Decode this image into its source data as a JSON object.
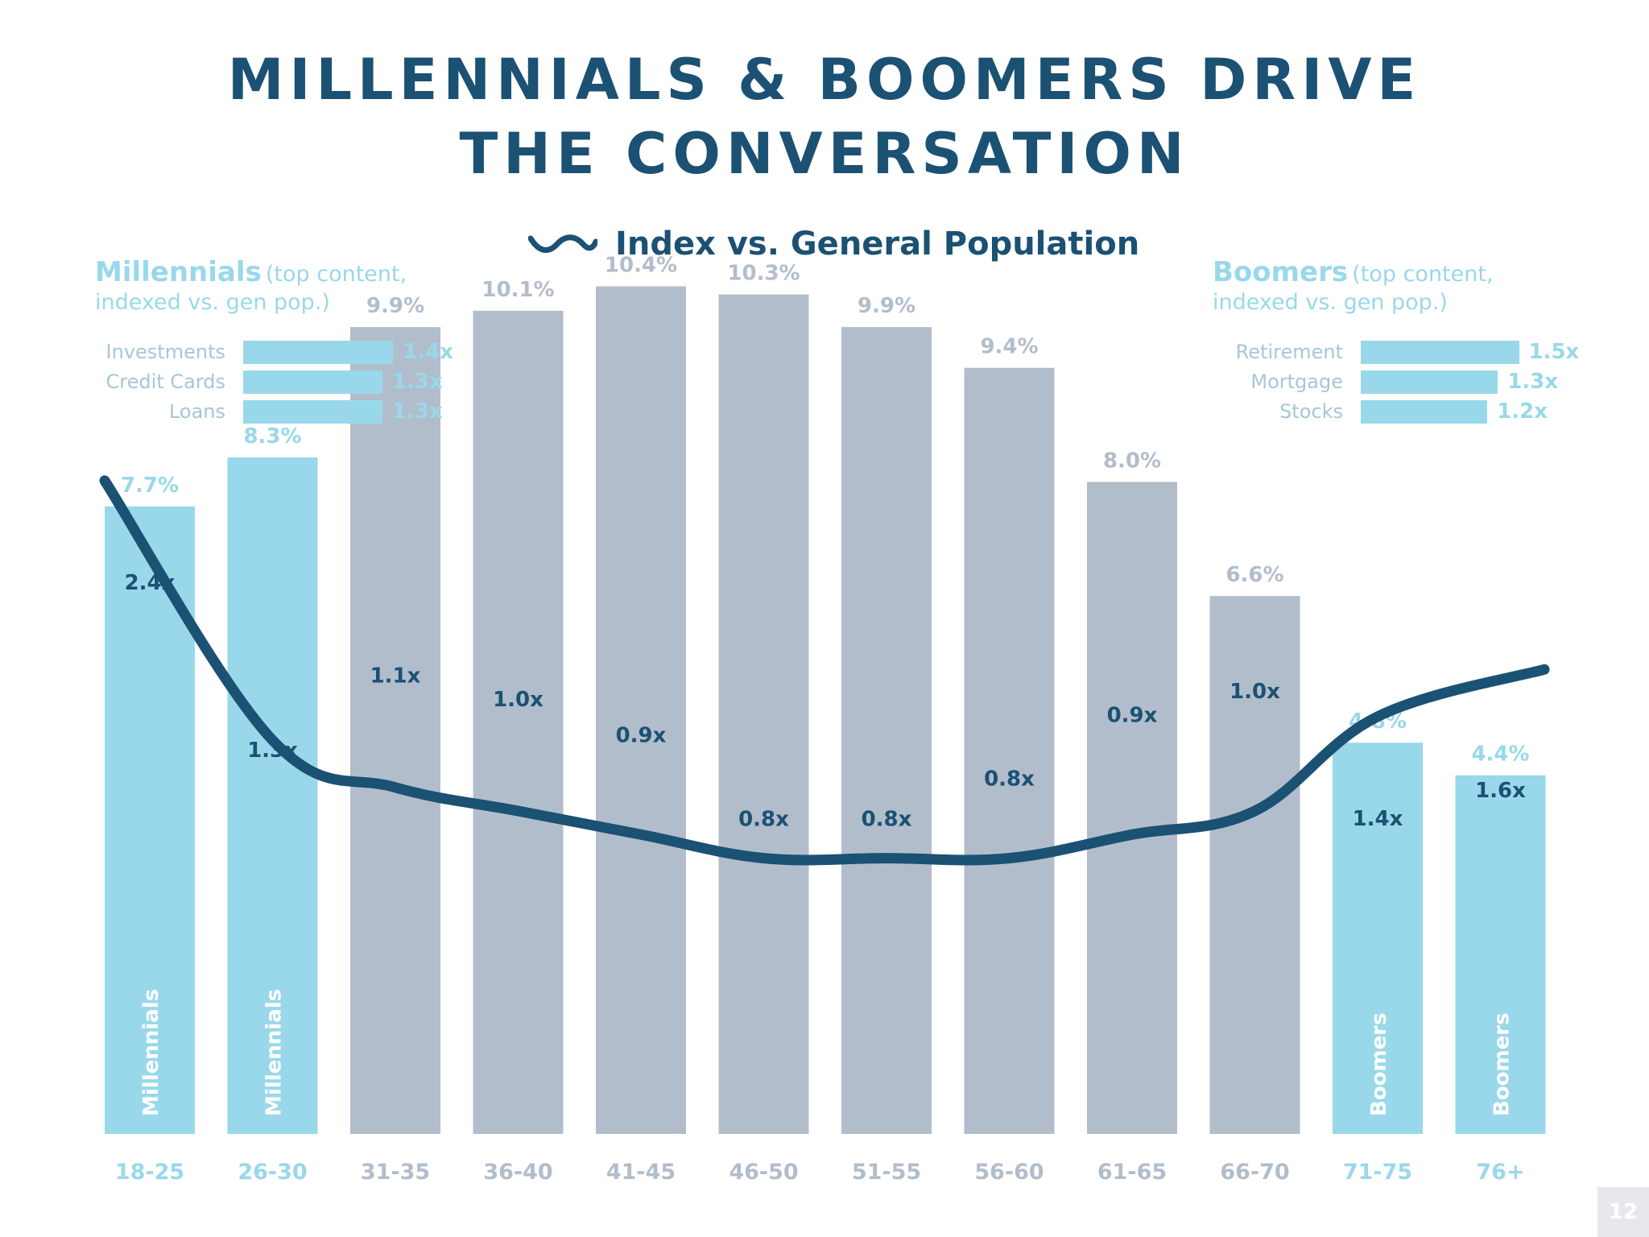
{
  "title": {
    "line1": "MILLENNIALS & BOOMERS DRIVE",
    "line2": "THE CONVERSATION"
  },
  "legend": {
    "label": "Index vs. General Population",
    "icon": "wave-line-icon"
  },
  "millennials_panel": {
    "title": "Millennials",
    "subtitle_line1": "(top content,",
    "subtitle_line2": "indexed vs. gen pop.)",
    "items": [
      {
        "label": "Investments",
        "value": 1.4,
        "value_label": "1.4x"
      },
      {
        "label": "Credit Cards",
        "value": 1.3,
        "value_label": "1.3x"
      },
      {
        "label": "Loans",
        "value": 1.3,
        "value_label": "1.3x"
      }
    ]
  },
  "boomers_panel": {
    "title": "Boomers",
    "subtitle_line1": "(top content,",
    "subtitle_line2": "indexed vs. gen pop.)",
    "items": [
      {
        "label": "Retirement",
        "value": 1.5,
        "value_label": "1.5x"
      },
      {
        "label": "Mortgage",
        "value": 1.3,
        "value_label": "1.3x"
      },
      {
        "label": "Stocks",
        "value": 1.2,
        "value_label": "1.2x"
      }
    ]
  },
  "colors": {
    "title": "#1b5173",
    "highlight_bar": "#99d8ea",
    "neutral_bar": "#b2bdcc",
    "index_line": "#1b5173",
    "neutral_label": "#b2bdcc",
    "page_number_bg": "#e6e8ed"
  },
  "chart_data": {
    "type": "bar",
    "categories": [
      "18-25",
      "26-30",
      "31-35",
      "36-40",
      "41-45",
      "46-50",
      "51-55",
      "56-60",
      "61-65",
      "66-70",
      "71-75",
      "76+"
    ],
    "series": [
      {
        "values": [
          7.7,
          8.3,
          9.9,
          10.1,
          10.4,
          10.3,
          9.9,
          9.4,
          8.0,
          6.6,
          4.8,
          4.4
        ],
        "value_labels": [
          "7.7%",
          "8.3%",
          "9.9%",
          "10.1%",
          "10.4%",
          "10.3%",
          "9.9%",
          "9.4%",
          "8.0%",
          "6.6%",
          "4.8%",
          "4.4%"
        ]
      },
      {
        "name": "Index vs. General Population",
        "type": "line",
        "values": [
          2.4,
          1.3,
          1.1,
          1.0,
          0.9,
          0.8,
          0.8,
          0.8,
          0.9,
          1.0,
          1.4,
          1.6
        ],
        "value_labels": [
          "2.4x",
          "1.3x",
          "1.1x",
          "1.0x",
          "0.9x",
          "0.8x",
          "0.8x",
          "0.8x",
          "0.9x",
          "1.0x",
          "1.4x",
          "1.6x"
        ]
      }
    ],
    "groups": [
      "Millennials",
      "Millennials",
      "",
      "",
      "",
      "",
      "",
      "",
      "",
      "",
      "Boomers",
      "Boomers"
    ],
    "highlighted": [
      true,
      true,
      false,
      false,
      false,
      false,
      false,
      false,
      false,
      false,
      true,
      true
    ],
    "ylim": [
      0,
      11
    ],
    "grid": false,
    "legend_position": "top-center"
  },
  "page_number": "12"
}
